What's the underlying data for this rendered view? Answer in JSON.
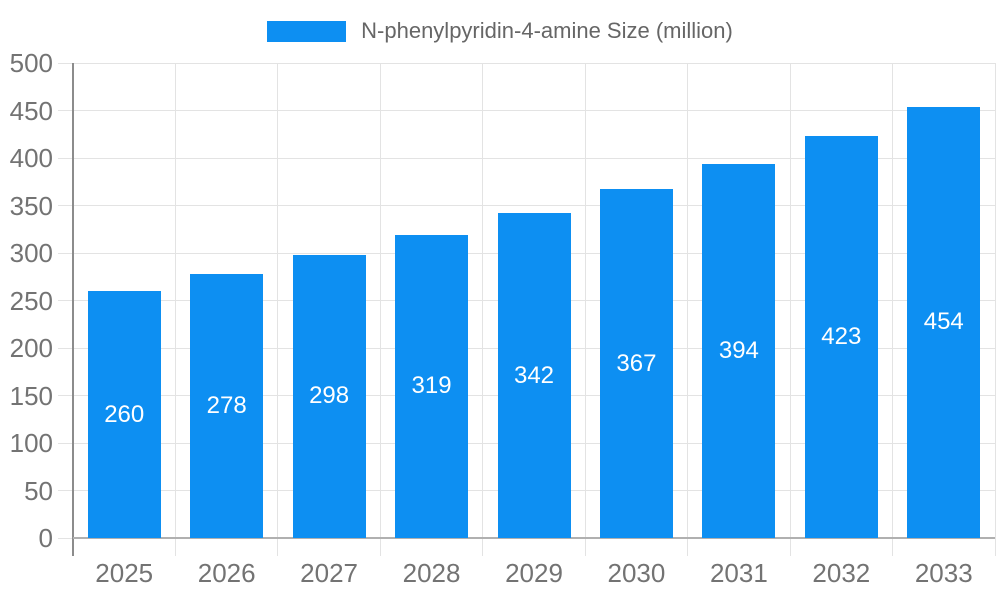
{
  "legend": {
    "label": "N-phenylpyridin-4-amine Size (million)"
  },
  "chart_data": {
    "type": "bar",
    "title": "N-phenylpyridin-4-amine Size (million)",
    "categories": [
      "2025",
      "2026",
      "2027",
      "2028",
      "2029",
      "2030",
      "2031",
      "2032",
      "2033"
    ],
    "values": [
      260,
      278,
      298,
      319,
      342,
      367,
      394,
      423,
      454
    ],
    "xlabel": "",
    "ylabel": "",
    "ylim": [
      0,
      500
    ],
    "ytick_step": 50,
    "grid": true,
    "legend_position": "top-center",
    "value_labels": "inside-center"
  },
  "colors": {
    "bar": "#0d8ff2",
    "grid_line": "#e3e3e3",
    "x_axis_line": "#b0b0b0",
    "y_axis_line": "#8c8c8c",
    "axis_label": "#737373",
    "legend_text": "#666666",
    "value_label": "#ffffff",
    "background": "#ffffff"
  }
}
